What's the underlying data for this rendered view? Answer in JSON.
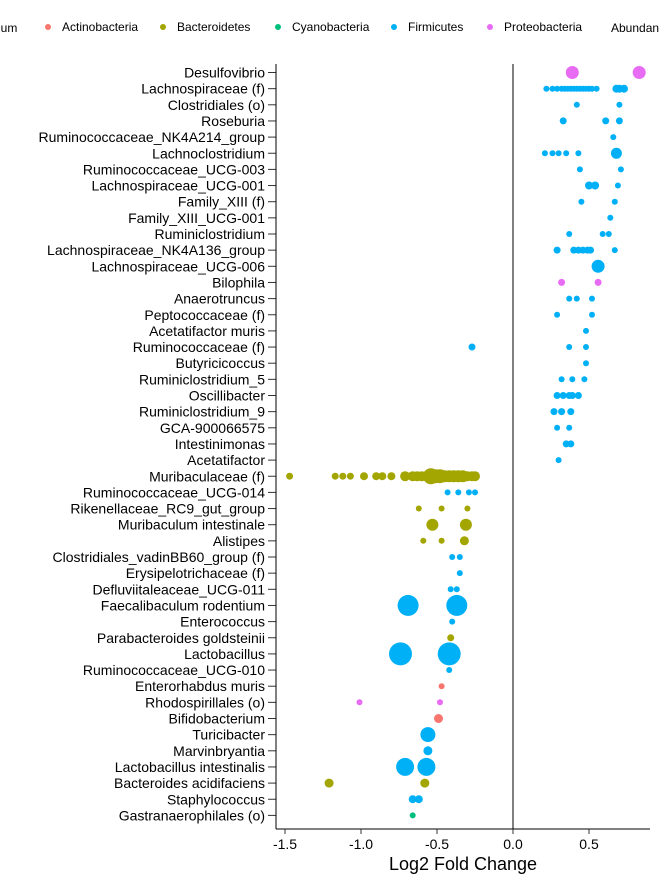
{
  "chart_data": {
    "type": "scatter",
    "xlabel": "Log2 Fold Change",
    "xlim": [
      -1.6,
      0.88
    ],
    "x_ticks": [
      -1.5,
      -1.0,
      -0.5,
      0.0,
      0.5
    ],
    "x_tick_labels": [
      "-1.5",
      "-1.0",
      "-0.5",
      "0.0",
      "0.5"
    ],
    "reference_line_x": 0,
    "legend": {
      "title": "ylum",
      "position": "top",
      "entries": [
        {
          "name": "Actinobacteria",
          "color": "#F8766D"
        },
        {
          "name": "Bacteroidetes",
          "color": "#A3A500"
        },
        {
          "name": "Cyanobacteria",
          "color": "#00BF7D"
        },
        {
          "name": "Firmicutes",
          "color": "#00B0F6"
        },
        {
          "name": "Proteobacteria",
          "color": "#E76BF3"
        }
      ],
      "size_title": "Abundan"
    },
    "categories": [
      "Desulfovibrio",
      "Lachnospiraceae (f)",
      "Clostridiales (o)",
      "Roseburia",
      "Ruminococcaceae_NK4A214_group",
      "Lachnoclostridium",
      "Ruminococcaceae_UCG-003",
      "Lachnospiraceae_UCG-001",
      "Family_XIII (f)",
      "Family_XIII_UCG-001",
      "Ruminiclostridium",
      "Lachnospiraceae_NK4A136_group",
      "Lachnospiraceae_UCG-006",
      "Bilophila",
      "Anaerotruncus",
      "Peptococcaceae (f)",
      "Acetatifactor muris",
      "Ruminococcaceae (f)",
      "Butyricicoccus",
      "Ruminiclostridium_5",
      "Oscillibacter",
      "Ruminiclostridium_9",
      "GCA-900066575",
      "Intestinimonas",
      "Acetatifactor",
      "Muribaculaceae (f)",
      "Ruminococcaceae_UCG-014",
      "Rikenellaceae_RC9_gut_group",
      "Muribaculum intestinale",
      "Alistipes",
      "Clostridiales_vadinBB60_group (f)",
      "Erysipelotrichaceae (f)",
      "Defluviitaleaceae_UCG-011",
      "Faecalibaculum rodentium",
      "Enterococcus",
      "Parabacteroides goldsteinii",
      "Lactobacillus",
      "Ruminococcaceae_UCG-010",
      "Enterorhabdus muris",
      "Rhodospirillales (o)",
      "Bifidobacterium",
      "Turicibacter",
      "Marvinbryantia",
      "Lactobacillus intestinalis",
      "Bacteroides acidifaciens",
      "Staphylococcus",
      "Gastranaerophilales (o)"
    ],
    "points": [
      {
        "taxon": "Desulfovibrio",
        "phylum": "Proteobacteria",
        "x": [
          0.39,
          0.83
        ],
        "size": [
          6.5,
          6.5
        ]
      },
      {
        "taxon": "Lachnospiraceae (f)",
        "phylum": "Firmicutes",
        "x": [
          0.22,
          0.26,
          0.29,
          0.32,
          0.34,
          0.36,
          0.38,
          0.4,
          0.42,
          0.44,
          0.46,
          0.48,
          0.5,
          0.52,
          0.55,
          0.68,
          0.7,
          0.73
        ],
        "size": [
          3,
          3,
          3,
          3,
          3,
          3,
          3,
          3,
          3,
          3,
          3,
          3,
          3,
          3,
          3,
          4,
          4,
          4
        ]
      },
      {
        "taxon": "Clostridiales (o)",
        "phylum": "Firmicutes",
        "x": [
          0.42,
          0.7
        ],
        "size": [
          3,
          3
        ]
      },
      {
        "taxon": "Roseburia",
        "phylum": "Firmicutes",
        "x": [
          0.33,
          0.61,
          0.7
        ],
        "size": [
          3.5,
          3.5,
          3.5
        ]
      },
      {
        "taxon": "Ruminococcaceae_NK4A214_group",
        "phylum": "Firmicutes",
        "x": [
          0.66
        ],
        "size": [
          3
        ]
      },
      {
        "taxon": "Lachnoclostridium",
        "phylum": "Firmicutes",
        "x": [
          0.21,
          0.26,
          0.3,
          0.35,
          0.43,
          0.68
        ],
        "size": [
          3,
          3,
          3,
          3,
          3,
          5.5
        ]
      },
      {
        "taxon": "Ruminococcaceae_UCG-003",
        "phylum": "Firmicutes",
        "x": [
          0.44,
          0.71
        ],
        "size": [
          3,
          3
        ]
      },
      {
        "taxon": "Lachnospiraceae_UCG-001",
        "phylum": "Firmicutes",
        "x": [
          0.5,
          0.54,
          0.69
        ],
        "size": [
          4,
          4,
          3
        ]
      },
      {
        "taxon": "Family_XIII (f)",
        "phylum": "Firmicutes",
        "x": [
          0.45,
          0.67
        ],
        "size": [
          3,
          3
        ]
      },
      {
        "taxon": "Family_XIII_UCG-001",
        "phylum": "Firmicutes",
        "x": [
          0.64
        ],
        "size": [
          3
        ]
      },
      {
        "taxon": "Ruminiclostridium",
        "phylum": "Firmicutes",
        "x": [
          0.37,
          0.59,
          0.63
        ],
        "size": [
          3,
          3,
          3
        ]
      },
      {
        "taxon": "Lachnospiraceae_NK4A136_group",
        "phylum": "Firmicutes",
        "x": [
          0.29,
          0.4,
          0.43,
          0.46,
          0.49,
          0.51,
          0.67
        ],
        "size": [
          3.5,
          3.5,
          3.5,
          3.5,
          3.5,
          3.5,
          3
        ]
      },
      {
        "taxon": "Lachnospiraceae_UCG-006",
        "phylum": "Firmicutes",
        "x": [
          0.56
        ],
        "size": [
          6.5
        ]
      },
      {
        "taxon": "Bilophila",
        "phylum": "Proteobacteria",
        "x": [
          0.32,
          0.56
        ],
        "size": [
          3.5,
          3.5
        ]
      },
      {
        "taxon": "Anaerotruncus",
        "phylum": "Firmicutes",
        "x": [
          0.37,
          0.42,
          0.52
        ],
        "size": [
          3,
          3,
          3
        ]
      },
      {
        "taxon": "Peptococcaceae (f)",
        "phylum": "Firmicutes",
        "x": [
          0.29,
          0.52
        ],
        "size": [
          3,
          3
        ]
      },
      {
        "taxon": "Acetatifactor muris",
        "phylum": "Firmicutes",
        "x": [
          0.48
        ],
        "size": [
          3
        ]
      },
      {
        "taxon": "Ruminococcaceae (f)",
        "phylum": "Firmicutes",
        "x": [
          -0.27,
          0.37,
          0.48
        ],
        "size": [
          3.5,
          3,
          3
        ]
      },
      {
        "taxon": "Butyricicoccus",
        "phylum": "Firmicutes",
        "x": [
          0.48
        ],
        "size": [
          3
        ]
      },
      {
        "taxon": "Ruminiclostridium_5",
        "phylum": "Firmicutes",
        "x": [
          0.32,
          0.39,
          0.47
        ],
        "size": [
          3,
          3,
          3
        ]
      },
      {
        "taxon": "Oscillibacter",
        "phylum": "Firmicutes",
        "x": [
          0.29,
          0.33,
          0.37,
          0.39,
          0.43
        ],
        "size": [
          3.5,
          3.5,
          3.5,
          3.5,
          3.5
        ]
      },
      {
        "taxon": "Ruminiclostridium_9",
        "phylum": "Firmicutes",
        "x": [
          0.27,
          0.32,
          0.38
        ],
        "size": [
          3.5,
          3.5,
          3.5
        ]
      },
      {
        "taxon": "GCA-900066575",
        "phylum": "Firmicutes",
        "x": [
          0.29,
          0.37
        ],
        "size": [
          3,
          3
        ]
      },
      {
        "taxon": "Intestinimonas",
        "phylum": "Firmicutes",
        "x": [
          0.35,
          0.38
        ],
        "size": [
          3.5,
          3.5
        ]
      },
      {
        "taxon": "Acetatifactor",
        "phylum": "Firmicutes",
        "x": [
          0.3
        ],
        "size": [
          3
        ]
      },
      {
        "taxon": "Muribaculaceae (f)",
        "phylum": "Bacteroidetes",
        "x": [
          -1.47,
          -1.17,
          -1.12,
          -1.07,
          -0.98,
          -0.9,
          -0.86,
          -0.8,
          -0.71,
          -0.66,
          -0.63,
          -0.6,
          -0.57,
          -0.54,
          -0.51,
          -0.48,
          -0.45,
          -0.42,
          -0.39,
          -0.36,
          -0.33,
          -0.3,
          -0.27,
          -0.25
        ],
        "size": [
          3.5,
          3.5,
          3.5,
          3.5,
          4,
          4,
          4,
          4,
          5,
          5,
          5,
          5,
          5,
          8,
          7,
          7,
          6,
          6,
          6,
          6,
          6,
          5,
          5,
          5
        ]
      },
      {
        "taxon": "Ruminococcaceae_UCG-014",
        "phylum": "Firmicutes",
        "x": [
          -0.43,
          -0.36,
          -0.29,
          -0.25
        ],
        "size": [
          3,
          3,
          3,
          3
        ]
      },
      {
        "taxon": "Rikenellaceae_RC9_gut_group",
        "phylum": "Bacteroidetes",
        "x": [
          -0.62,
          -0.47,
          -0.3
        ],
        "size": [
          3,
          3,
          3
        ]
      },
      {
        "taxon": "Muribaculum intestinale",
        "phylum": "Bacteroidetes",
        "x": [
          -0.53,
          -0.31
        ],
        "size": [
          6,
          6
        ]
      },
      {
        "taxon": "Alistipes",
        "phylum": "Bacteroidetes",
        "x": [
          -0.59,
          -0.47,
          -0.32
        ],
        "size": [
          3,
          3,
          4.5
        ]
      },
      {
        "taxon": "Clostridiales_vadinBB60_group (f)",
        "phylum": "Firmicutes",
        "x": [
          -0.4,
          -0.35
        ],
        "size": [
          3,
          3
        ]
      },
      {
        "taxon": "Erysipelotrichaceae (f)",
        "phylum": "Firmicutes",
        "x": [
          -0.35
        ],
        "size": [
          3
        ]
      },
      {
        "taxon": "Defluviitaleaceae_UCG-011",
        "phylum": "Firmicutes",
        "x": [
          -0.41,
          -0.37
        ],
        "size": [
          3,
          3
        ]
      },
      {
        "taxon": "Faecalibaculum rodentium",
        "phylum": "Firmicutes",
        "x": [
          -0.69,
          -0.37
        ],
        "size": [
          10.5,
          10.5
        ]
      },
      {
        "taxon": "Enterococcus",
        "phylum": "Firmicutes",
        "x": [
          -0.4
        ],
        "size": [
          3
        ]
      },
      {
        "taxon": "Parabacteroides goldsteinii",
        "phylum": "Bacteroidetes",
        "x": [
          -0.41
        ],
        "size": [
          3.5
        ]
      },
      {
        "taxon": "Lactobacillus",
        "phylum": "Firmicutes",
        "x": [
          -0.74,
          -0.42
        ],
        "size": [
          11.5,
          11.5
        ]
      },
      {
        "taxon": "Ruminococcaceae_UCG-010",
        "phylum": "Firmicutes",
        "x": [
          -0.42
        ],
        "size": [
          3
        ]
      },
      {
        "taxon": "Enterorhabdus muris",
        "phylum": "Actinobacteria",
        "x": [
          -0.47
        ],
        "size": [
          3
        ]
      },
      {
        "taxon": "Rhodospirillales (o)",
        "phylum": "Proteobacteria",
        "x": [
          -1.01,
          -0.48
        ],
        "size": [
          3,
          3
        ]
      },
      {
        "taxon": "Bifidobacterium",
        "phylum": "Actinobacteria",
        "x": [
          -0.49
        ],
        "size": [
          4.5
        ]
      },
      {
        "taxon": "Turicibacter",
        "phylum": "Firmicutes",
        "x": [
          -0.56
        ],
        "size": [
          7.5
        ]
      },
      {
        "taxon": "Marvinbryantia",
        "phylum": "Firmicutes",
        "x": [
          -0.56
        ],
        "size": [
          4.5
        ]
      },
      {
        "taxon": "Lactobacillus intestinalis",
        "phylum": "Firmicutes",
        "x": [
          -0.71,
          -0.57
        ],
        "size": [
          9,
          9
        ]
      },
      {
        "taxon": "Bacteroides acidifaciens",
        "phylum": "Bacteroidetes",
        "x": [
          -1.21,
          -0.58
        ],
        "size": [
          4.5,
          4.5
        ]
      },
      {
        "taxon": "Staphylococcus",
        "phylum": "Firmicutes",
        "x": [
          -0.66,
          -0.62
        ],
        "size": [
          4,
          4
        ]
      },
      {
        "taxon": "Gastranaerophilales (o)",
        "phylum": "Cyanobacteria",
        "x": [
          -0.66
        ],
        "size": [
          3
        ]
      }
    ]
  }
}
